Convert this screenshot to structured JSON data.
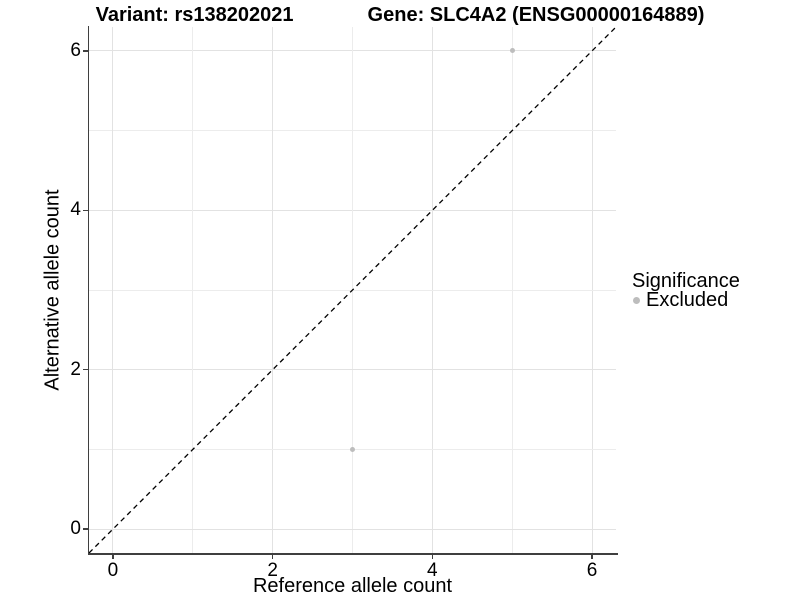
{
  "chart_data": {
    "type": "scatter",
    "title_left": "Variant: rs138202021",
    "title_right": "Gene: SLC4A2 (ENSG00000164889)",
    "xlabel": "Reference allele count",
    "ylabel": "Alternative allele count",
    "xlim": [
      -0.3,
      6.3
    ],
    "ylim": [
      -0.3,
      6.3
    ],
    "x_ticks": [
      0,
      2,
      4,
      6
    ],
    "y_ticks": [
      0,
      2,
      4,
      6
    ],
    "gridline_values": [
      0,
      1,
      2,
      3,
      4,
      5,
      6
    ],
    "grid": "on",
    "series": [
      {
        "name": "Excluded",
        "marker_color": "#bdbdbd",
        "points": [
          [
            3,
            1
          ],
          [
            5,
            6
          ]
        ]
      }
    ],
    "reference_line": {
      "kind": "identity y=x",
      "from": [
        -0.3,
        -0.3
      ],
      "to": [
        6.3,
        6.3
      ],
      "style": "dashed",
      "color": "#000000"
    },
    "legend": {
      "title": "Significance",
      "position": "right",
      "entries": [
        {
          "label": "Excluded",
          "marker_color": "#bdbdbd"
        }
      ]
    }
  },
  "colors": {
    "background": "#ffffff",
    "grid_major": "#e2e2e2",
    "grid_minor": "#ececec",
    "axis_line": "#3f3f3f",
    "text": "#000000",
    "point": "#bdbdbd"
  }
}
